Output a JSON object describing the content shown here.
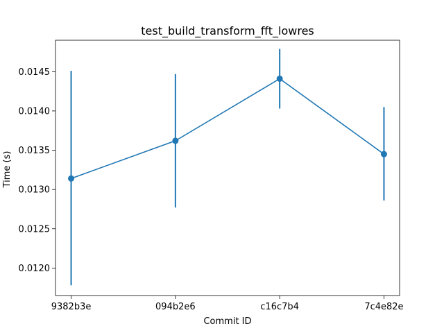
{
  "chart_data": {
    "type": "line",
    "title": "test_build_transform_fft_lowres",
    "xlabel": "Commit ID",
    "ylabel": "Time (s)",
    "categories": [
      "9382b3e",
      "094b2e6",
      "c16c7b4",
      "7c4e82e"
    ],
    "series": [
      {
        "values": [
          0.01314,
          0.01362,
          0.01441,
          0.01345
        ],
        "error_low": [
          0.01178,
          0.01277,
          0.01403,
          0.01286
        ],
        "error_high": [
          0.01451,
          0.01447,
          0.01479,
          0.01405
        ],
        "color": "#1f77b4",
        "marker": "circle"
      }
    ],
    "ylim": [
      0.01165,
      0.0149
    ],
    "yticks": [
      0.012,
      0.0125,
      0.013,
      0.0135,
      0.014,
      0.0145
    ],
    "ytick_labels": [
      "0.0120",
      "0.0125",
      "0.0130",
      "0.0135",
      "0.0140",
      "0.0145"
    ],
    "grid": false,
    "legend": "none"
  }
}
